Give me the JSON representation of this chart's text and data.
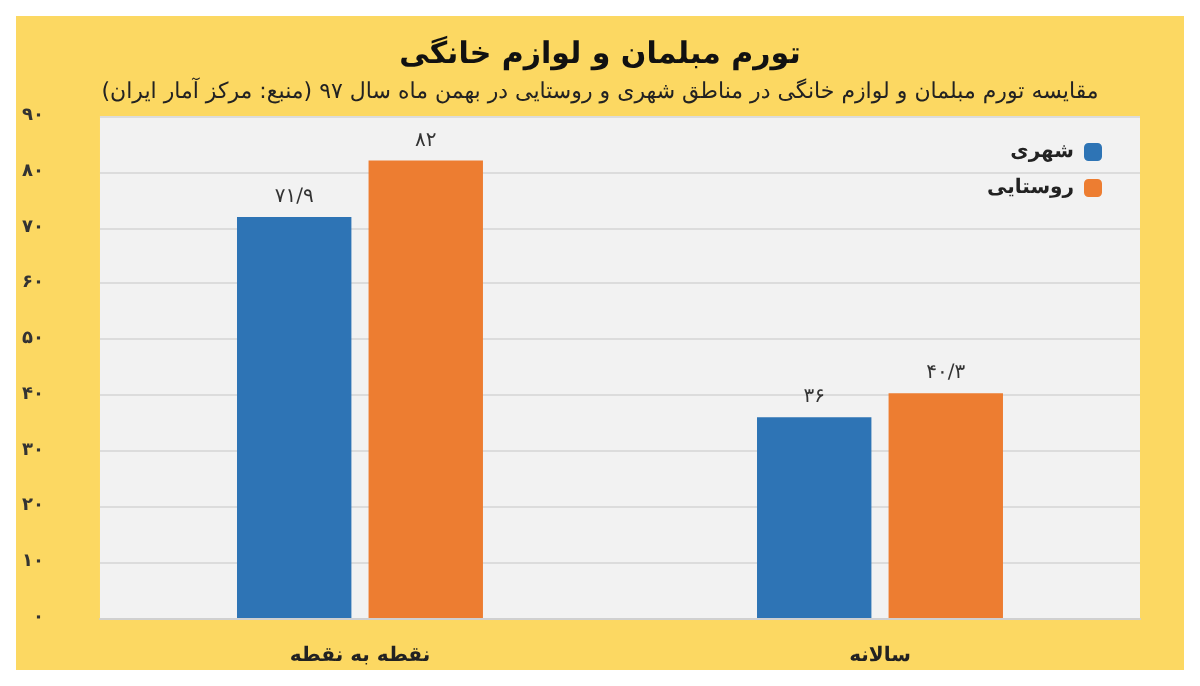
{
  "chart_data": {
    "type": "bar",
    "title": "تورم مبلمان و لوازم خانگی",
    "subtitle": "مقایسه تورم مبلمان و لوازم خانگی در مناطق شهری و روستایی در بهمن ماه سال ۹۷ (منبع: مرکز آمار ایران)",
    "categories": [
      "نقطه به نقطه",
      "سالانه"
    ],
    "series": [
      {
        "name": "شهری",
        "color": "#2e74b5",
        "values": [
          71.9,
          36
        ],
        "value_labels": [
          "۷۱/۹",
          "۳۶"
        ]
      },
      {
        "name": "روستایی",
        "color": "#ed7d31",
        "values": [
          82,
          40.3
        ],
        "value_labels": [
          "۸۲",
          "۴۰/۳"
        ]
      }
    ],
    "ylim": [
      0,
      90
    ],
    "yticks": [
      {
        "value": 0,
        "label": "۰"
      },
      {
        "value": 10,
        "label": "۱۰"
      },
      {
        "value": 20,
        "label": "۲۰"
      },
      {
        "value": 30,
        "label": "۳۰"
      },
      {
        "value": 40,
        "label": "۴۰"
      },
      {
        "value": 50,
        "label": "۵۰"
      },
      {
        "value": 60,
        "label": "۶۰"
      },
      {
        "value": 70,
        "label": "۷۰"
      },
      {
        "value": 80,
        "label": "۸۰"
      },
      {
        "value": 90,
        "label": "۹۰"
      }
    ],
    "grid": "y",
    "legend": "top right"
  }
}
